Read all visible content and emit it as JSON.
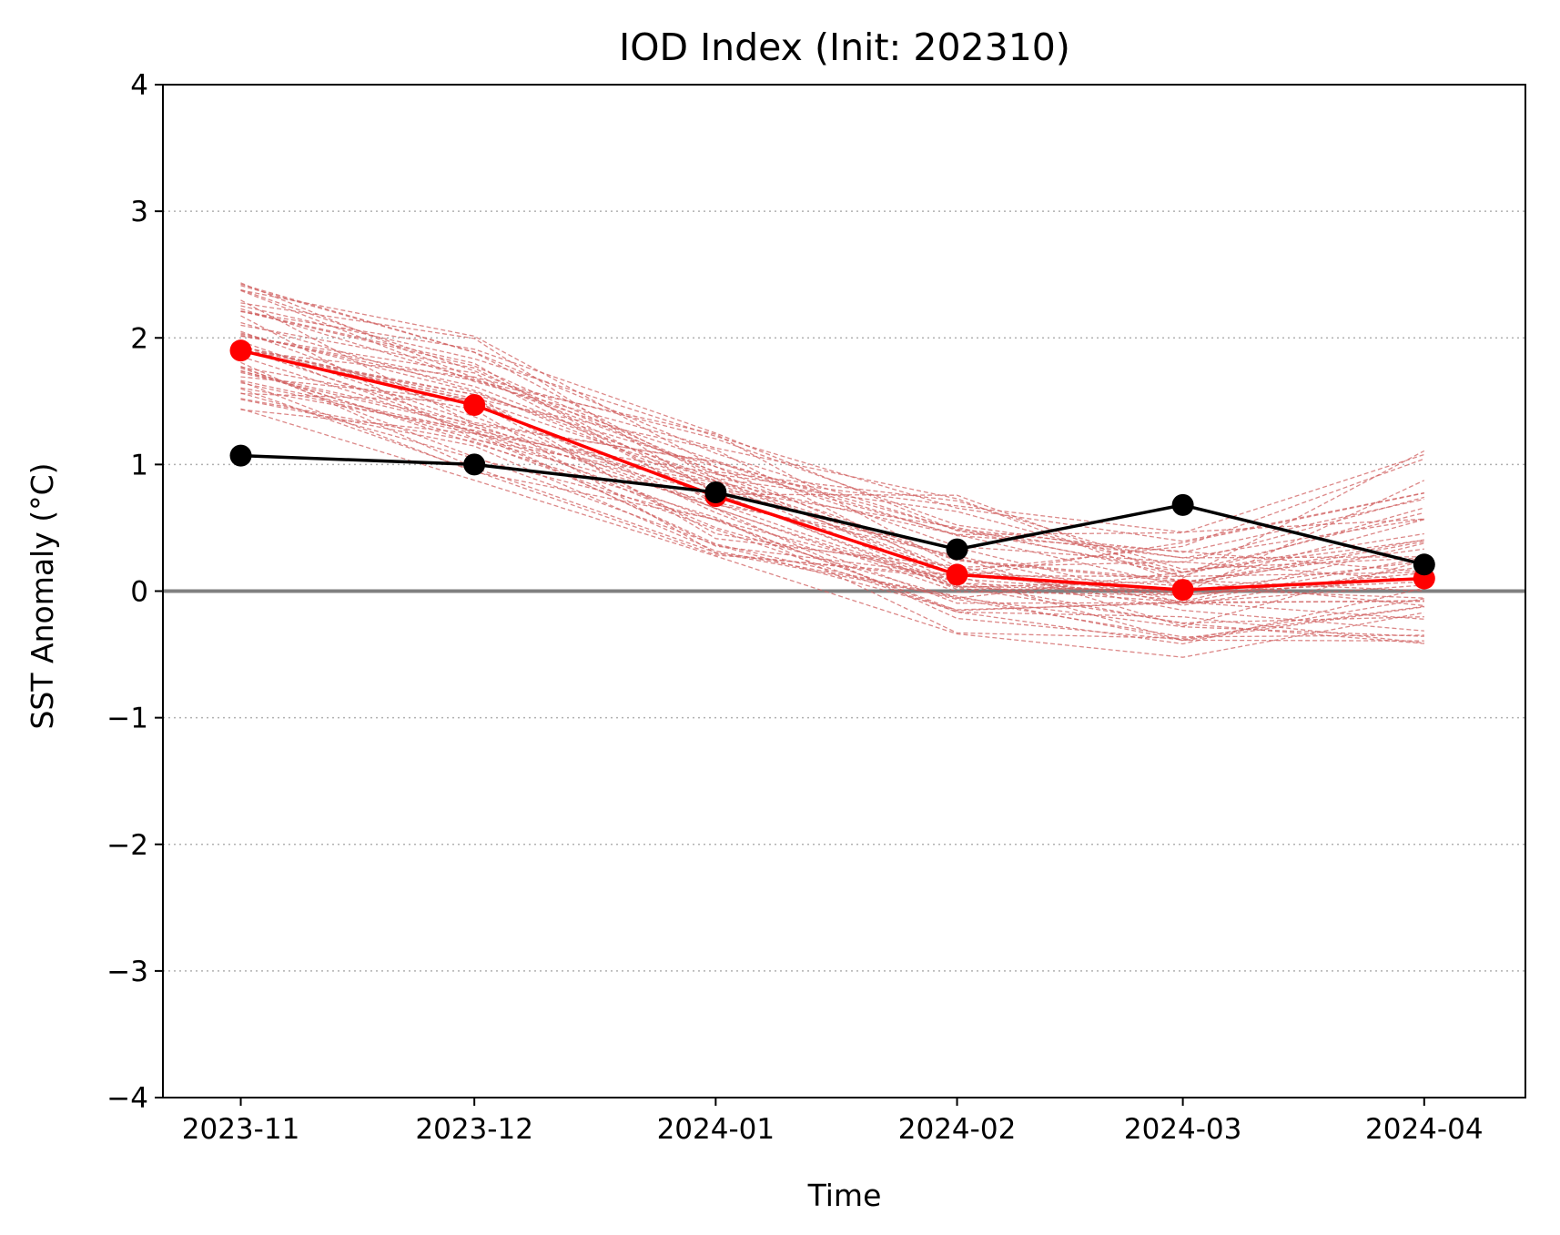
{
  "chart_data": {
    "type": "line",
    "title": "IOD Index (Init: 202310)",
    "xlabel": "Time",
    "ylabel": "SST Anomaly (°C)",
    "categories": [
      "2023-11",
      "2023-12",
      "2024-01",
      "2024-02",
      "2024-03",
      "2024-04"
    ],
    "x_day_offsets": [
      0,
      30,
      61,
      92,
      121,
      152
    ],
    "yticks": [
      -4,
      -3,
      -2,
      -1,
      0,
      1,
      2,
      3,
      4
    ],
    "ytick_labels": [
      "−4",
      "−3",
      "−2",
      "−1",
      "0",
      "1",
      "2",
      "3",
      "4"
    ],
    "ylim": [
      -4,
      4
    ],
    "grid": "horizontal-dotted",
    "zero_line": true,
    "series": [
      {
        "role": "ensemble-mean",
        "color": "#ff0000",
        "marker": "circle",
        "values": [
          1.9,
          1.47,
          0.75,
          0.13,
          0.01,
          0.1
        ]
      },
      {
        "role": "observed",
        "color": "#000000",
        "marker": "circle",
        "values": [
          1.07,
          1.0,
          0.78,
          0.33,
          0.68,
          0.21
        ]
      }
    ],
    "ensemble_members": {
      "color": "#d06060",
      "style": "dashed",
      "count": 50,
      "min": [
        1.35,
        0.8,
        0.2,
        -0.4,
        -0.55,
        -0.55
      ],
      "max": [
        2.55,
        2.1,
        1.38,
        0.9,
        0.55,
        1.25
      ]
    }
  }
}
